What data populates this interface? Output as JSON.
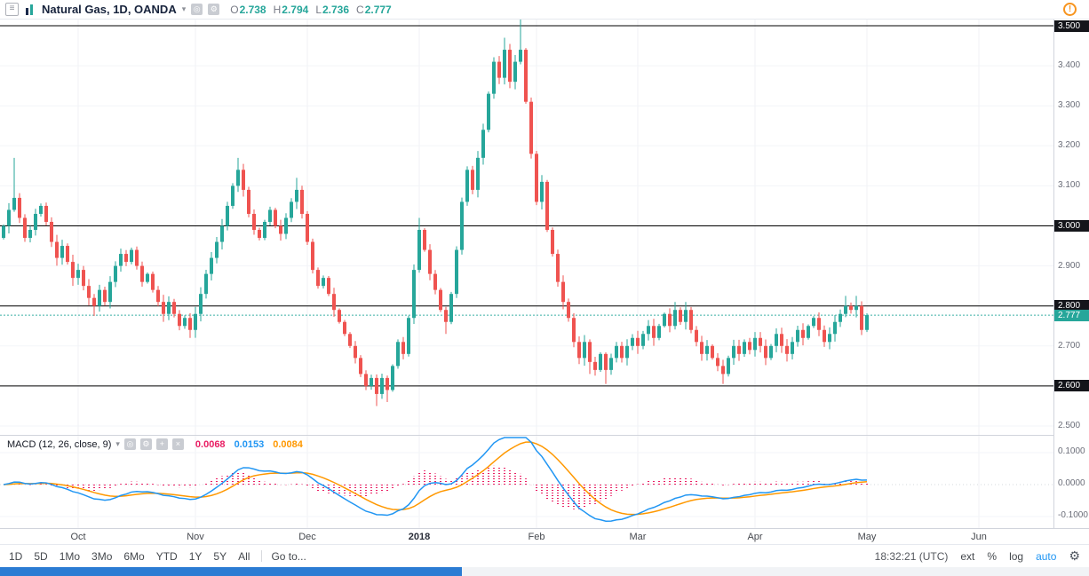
{
  "header": {
    "symbol_title": "Natural Gas, 1D, OANDA",
    "ohlc": [
      {
        "label": "O",
        "value": "2.738"
      },
      {
        "label": "H",
        "value": "2.794"
      },
      {
        "label": "L",
        "value": "2.736"
      },
      {
        "label": "C",
        "value": "2.777"
      }
    ]
  },
  "macd_legend": {
    "label": "MACD (12, 26, close, 9)",
    "hist_value": "0.0068",
    "macd_value": "0.0153",
    "signal_value": "0.0084"
  },
  "price_axis": {
    "labels": [
      "3.500",
      "3.400",
      "3.300",
      "3.200",
      "3.100",
      "3.000",
      "2.900",
      "2.800",
      "2.700",
      "2.600",
      "2.500"
    ],
    "tagged": [
      "3.500",
      "3.000",
      "2.800",
      "2.600"
    ],
    "last_price": "2.777"
  },
  "macd_axis": {
    "labels": [
      {
        "text": "0.1000",
        "value": 0.1
      },
      {
        "text": "0.0000",
        "value": 0.0
      },
      {
        "text": "-0.1000",
        "value": -0.1
      }
    ]
  },
  "toolbar": {
    "ranges": [
      "1D",
      "5D",
      "1Mo",
      "3Mo",
      "6Mo",
      "YTD",
      "1Y",
      "5Y",
      "All"
    ],
    "goto_label": "Go to...",
    "clock": "18:32:21 (UTC)",
    "scale_buttons": [
      "ext",
      "%",
      "log",
      "auto"
    ],
    "active_scale": "auto"
  },
  "colors": {
    "up": "#26a69a",
    "down": "#ef5350",
    "macd_line": "#2196f3",
    "signal_line": "#ff9800",
    "histogram": "#e91e63",
    "last_price_tag": "#26a69a",
    "line_tag_bg": "#14151a",
    "accent_blue": "#2196f3",
    "alert_orange": "#f7941e"
  },
  "chart_data": {
    "type": "candlestick",
    "title": "Natural Gas, 1D, OANDA",
    "x_axis": {
      "months": [
        {
          "label": "Oct",
          "index": 14
        },
        {
          "label": "Nov",
          "index": 36
        },
        {
          "label": "Dec",
          "index": 57
        },
        {
          "label": "2018",
          "index": 78,
          "bold": true
        },
        {
          "label": "Feb",
          "index": 100
        },
        {
          "label": "Mar",
          "index": 119
        },
        {
          "label": "Apr",
          "index": 141
        },
        {
          "label": "May",
          "index": 162
        },
        {
          "label": "Jun",
          "index": 183
        }
      ]
    },
    "y_axis": {
      "min": 2.46,
      "max": 3.53,
      "ticks": [
        3.5,
        3.4,
        3.3,
        3.2,
        3.1,
        3.0,
        2.9,
        2.8,
        2.7,
        2.6,
        2.5
      ]
    },
    "horizontal_lines": [
      3.5,
      3.0,
      2.8,
      2.6
    ],
    "last_price": 2.777,
    "first_open": 2.97,
    "closes": [
      3.0,
      3.04,
      3.07,
      3.02,
      2.97,
      2.99,
      3.03,
      3.05,
      3.01,
      2.96,
      2.92,
      2.95,
      2.91,
      2.87,
      2.89,
      2.85,
      2.82,
      2.8,
      2.84,
      2.81,
      2.86,
      2.9,
      2.93,
      2.91,
      2.94,
      2.9,
      2.86,
      2.88,
      2.84,
      2.81,
      2.78,
      2.81,
      2.78,
      2.75,
      2.77,
      2.74,
      2.78,
      2.83,
      2.88,
      2.92,
      2.96,
      3.0,
      3.05,
      3.1,
      3.14,
      3.09,
      3.03,
      2.99,
      2.97,
      3.01,
      3.04,
      3.0,
      2.98,
      3.02,
      3.06,
      3.09,
      3.03,
      2.96,
      2.89,
      2.85,
      2.87,
      2.83,
      2.79,
      2.76,
      2.73,
      2.7,
      2.67,
      2.63,
      2.6,
      2.62,
      2.58,
      2.62,
      2.59,
      2.65,
      2.71,
      2.68,
      2.77,
      2.89,
      2.99,
      2.94,
      2.88,
      2.84,
      2.79,
      2.76,
      2.83,
      2.94,
      3.06,
      3.14,
      3.09,
      3.17,
      3.24,
      3.33,
      3.41,
      3.37,
      3.44,
      3.36,
      3.41,
      3.44,
      3.31,
      3.18,
      3.06,
      3.11,
      2.99,
      2.93,
      2.86,
      2.81,
      2.77,
      2.71,
      2.67,
      2.71,
      2.66,
      2.64,
      2.68,
      2.64,
      2.67,
      2.7,
      2.67,
      2.7,
      2.72,
      2.7,
      2.73,
      2.75,
      2.72,
      2.75,
      2.78,
      2.75,
      2.79,
      2.76,
      2.79,
      2.74,
      2.71,
      2.68,
      2.7,
      2.67,
      2.65,
      2.63,
      2.67,
      2.7,
      2.68,
      2.71,
      2.69,
      2.72,
      2.7,
      2.67,
      2.7,
      2.73,
      2.7,
      2.68,
      2.71,
      2.74,
      2.72,
      2.75,
      2.77,
      2.74,
      2.71,
      2.73,
      2.76,
      2.78,
      2.8,
      2.79,
      2.8,
      2.74,
      2.777
    ],
    "wick_overrides": {
      "2": {
        "h": 3.17
      },
      "17": {
        "l": 2.775
      },
      "35": {
        "l": 2.72
      },
      "44": {
        "h": 3.17
      },
      "55": {
        "h": 3.12
      },
      "70": {
        "l": 2.55
      },
      "72": {
        "l": 2.56
      },
      "78": {
        "h": 3.02
      },
      "83": {
        "l": 2.73
      },
      "94": {
        "h": 3.47
      },
      "97": {
        "h": 3.52
      },
      "110": {
        "l": 2.63
      },
      "113": {
        "l": 2.605
      },
      "126": {
        "h": 2.81
      },
      "128": {
        "h": 2.81
      },
      "135": {
        "l": 2.605
      },
      "158": {
        "h": 2.825
      },
      "160": {
        "h": 2.825
      }
    },
    "macd": {
      "params": [
        12,
        26,
        9
      ],
      "axis_ticks": [
        0.1,
        0.0,
        -0.1
      ],
      "last": {
        "histogram": 0.0068,
        "macd": 0.0153,
        "signal": 0.0084
      }
    }
  }
}
